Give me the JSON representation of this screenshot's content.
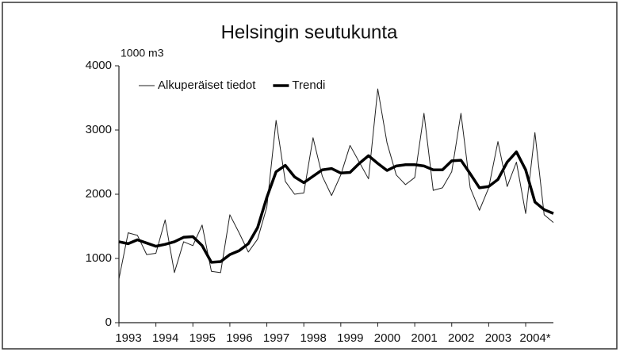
{
  "chart_data": {
    "type": "line",
    "title": "Helsingin seutukunta",
    "y_label": "1000 m3",
    "categories": [
      "1993",
      null,
      null,
      null,
      "1994",
      null,
      null,
      null,
      "1995",
      null,
      null,
      null,
      "1996",
      null,
      null,
      null,
      "1997",
      null,
      null,
      null,
      "1998",
      null,
      null,
      null,
      "1999",
      null,
      null,
      null,
      "2000",
      null,
      null,
      null,
      "2001",
      null,
      null,
      null,
      "2002",
      null,
      null,
      null,
      "2003",
      null,
      null,
      null,
      "2004*",
      null,
      null,
      null
    ],
    "series": [
      {
        "name": "Alkuperäiset tiedot",
        "color": "#222222",
        "width": 1,
        "values": [
          680,
          1400,
          1360,
          1060,
          1080,
          1600,
          780,
          1260,
          1200,
          1520,
          800,
          780,
          1680,
          1400,
          1100,
          1300,
          1800,
          3150,
          2200,
          2000,
          2020,
          2880,
          2280,
          1980,
          2300,
          2760,
          2500,
          2240,
          3640,
          2800,
          2300,
          2150,
          2260,
          3260,
          2060,
          2100,
          2350,
          3260,
          2100,
          1750,
          2100,
          2820,
          2120,
          2500,
          1700,
          2960,
          1680,
          1560
        ]
      },
      {
        "name": "Trendi",
        "color": "#000000",
        "width": 3.5,
        "values": [
          1260,
          1230,
          1290,
          1240,
          1190,
          1220,
          1260,
          1330,
          1340,
          1200,
          940,
          950,
          1060,
          1120,
          1230,
          1480,
          1950,
          2350,
          2450,
          2270,
          2180,
          2280,
          2380,
          2400,
          2330,
          2340,
          2480,
          2600,
          2480,
          2370,
          2440,
          2460,
          2460,
          2440,
          2380,
          2380,
          2520,
          2530,
          2320,
          2100,
          2120,
          2230,
          2500,
          2660,
          2380,
          1880,
          1760,
          1700
        ]
      }
    ],
    "ylim": [
      0,
      4000
    ],
    "yticks": [
      0,
      1000,
      2000,
      3000,
      4000
    ],
    "legend": "top-left",
    "grid": false
  }
}
